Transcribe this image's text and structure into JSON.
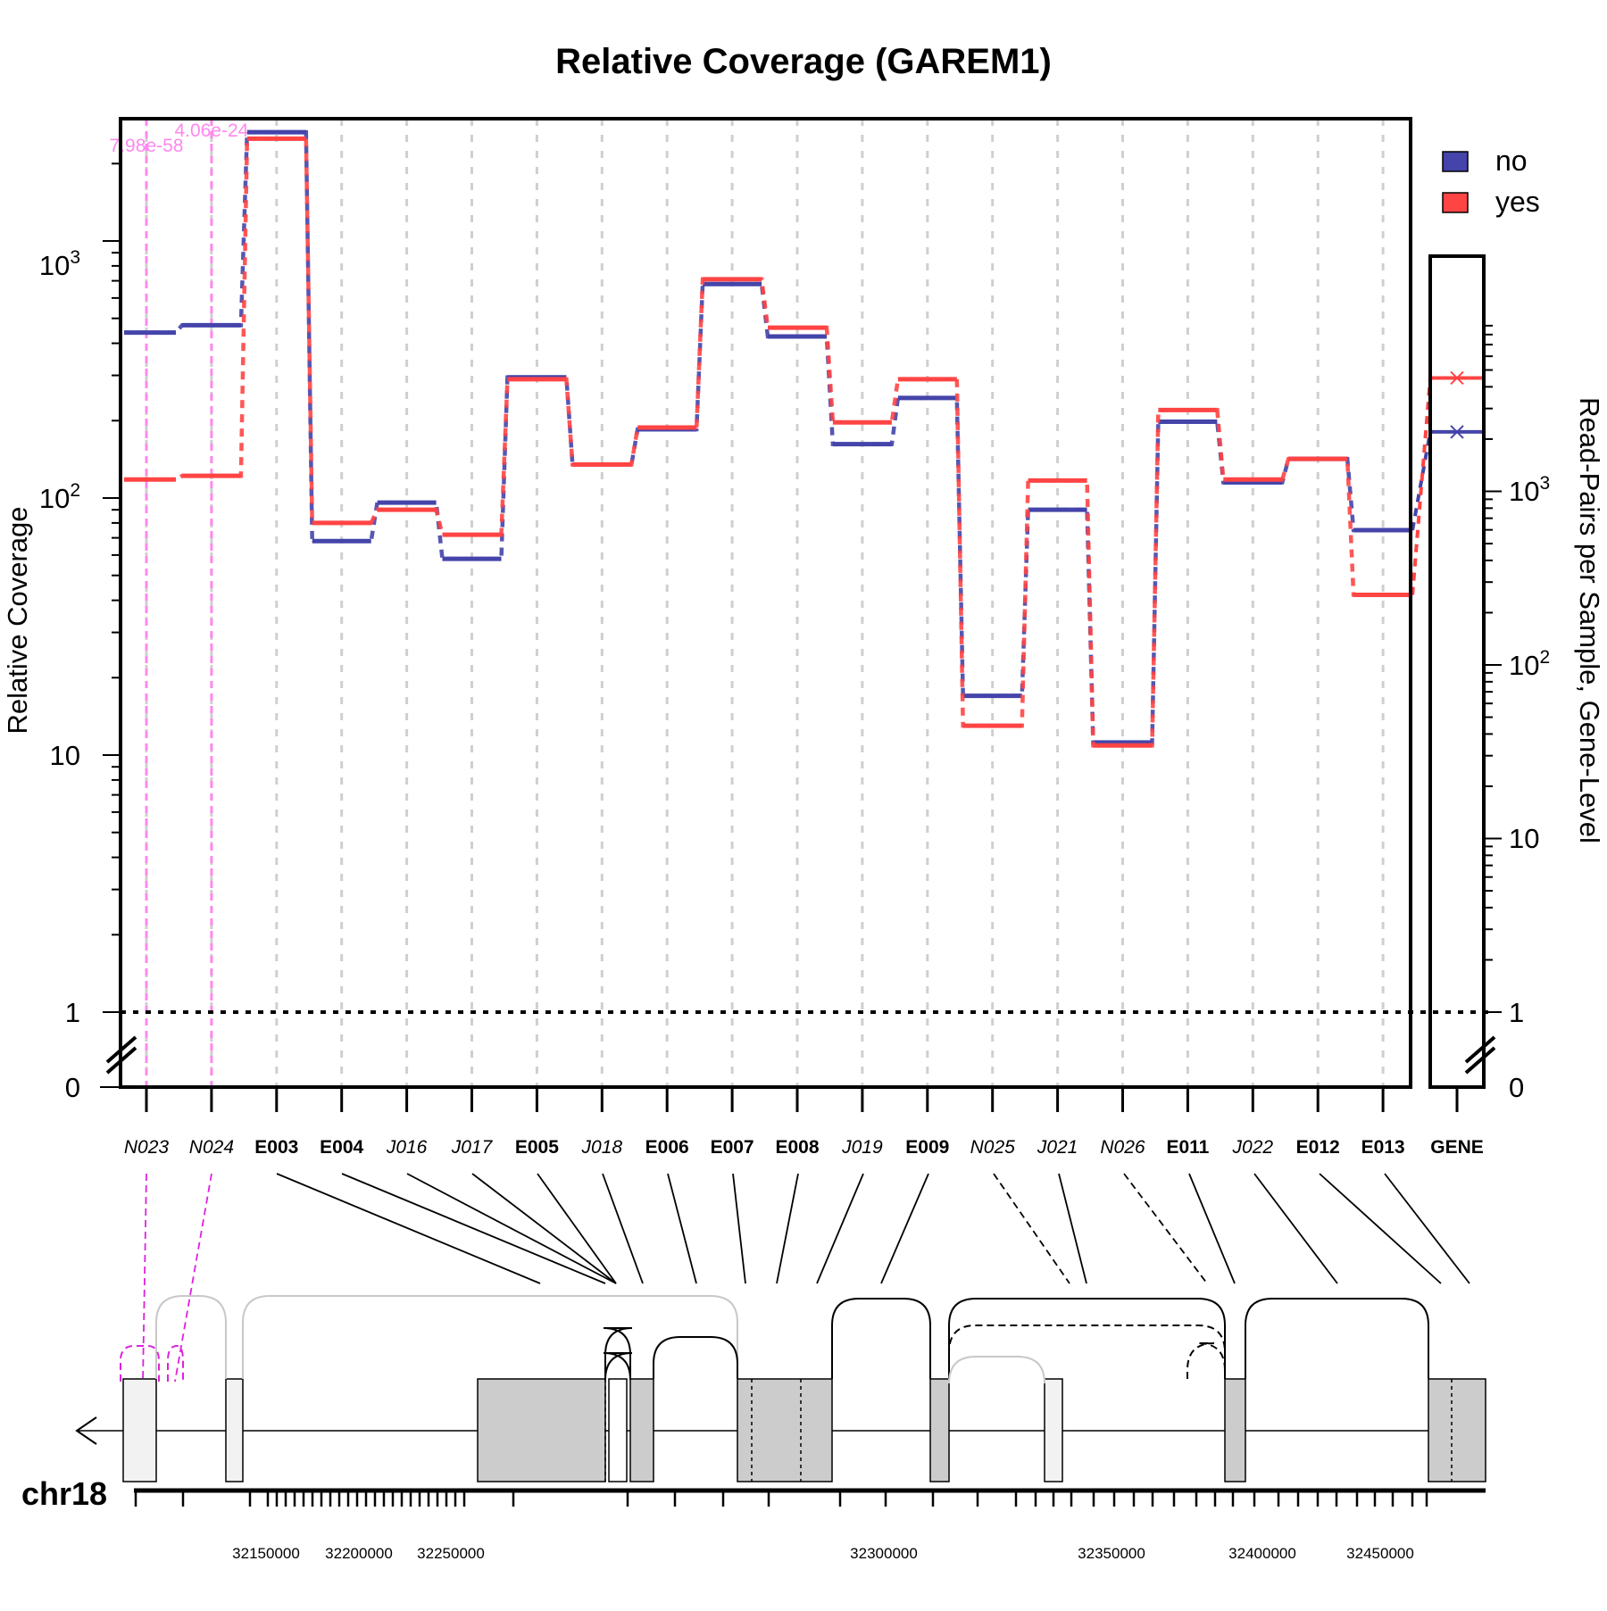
{
  "chart_data": {
    "type": "line",
    "title": "Relative Coverage (GAREM1)",
    "ylabel": "Relative Coverage",
    "ylabel_right": "Read-Pairs per Sample, Gene-Level",
    "y_scale": "log",
    "ylim": [
      0,
      3000
    ],
    "y_ticks_left": [
      "0",
      "1",
      "10",
      "10^2",
      "10^3"
    ],
    "y_ticks_right": [
      "0",
      "1",
      "10",
      "10^2",
      "10^3"
    ],
    "grid": "vertical dashed",
    "legend_position": "top-right",
    "categories": [
      "N023",
      "N024",
      "E003",
      "E004",
      "J016",
      "J017",
      "E005",
      "J018",
      "E006",
      "E007",
      "E008",
      "J019",
      "E009",
      "N025",
      "J021",
      "N026",
      "E011",
      "J022",
      "E012",
      "E013"
    ],
    "category_style": [
      "italic",
      "italic",
      "bold",
      "bold",
      "italic",
      "italic",
      "bold",
      "italic",
      "bold",
      "bold",
      "bold",
      "italic",
      "bold",
      "italic",
      "italic",
      "italic",
      "bold",
      "italic",
      "bold",
      "bold"
    ],
    "gene_label": "GENE",
    "series": [
      {
        "name": "no",
        "color": "#4444aa",
        "values": [
          440,
          470,
          2650,
          68,
          96,
          58,
          295,
          135,
          185,
          680,
          425,
          162,
          245,
          17,
          90,
          11.2,
          198,
          115,
          142,
          75
        ],
        "gene_level": 2200
      },
      {
        "name": "yes",
        "color": "#ff4444",
        "values": [
          118,
          122,
          2500,
          80,
          90,
          72,
          290,
          135,
          188,
          710,
          460,
          197,
          290,
          13,
          117,
          10.9,
          220,
          118,
          142,
          42
        ],
        "gene_level": 4500
      }
    ],
    "annotations": [
      {
        "text": "7.98e-58",
        "category": "N023",
        "color": "#ff88ee"
      },
      {
        "text": "4.06e-24",
        "category": "N024",
        "color": "#ff88ee"
      }
    ],
    "genome": {
      "chromosome": "chr18",
      "tick_labels": [
        "32150000",
        "32200000",
        "32250000",
        "32300000",
        "32350000",
        "32400000",
        "32450000"
      ]
    }
  }
}
